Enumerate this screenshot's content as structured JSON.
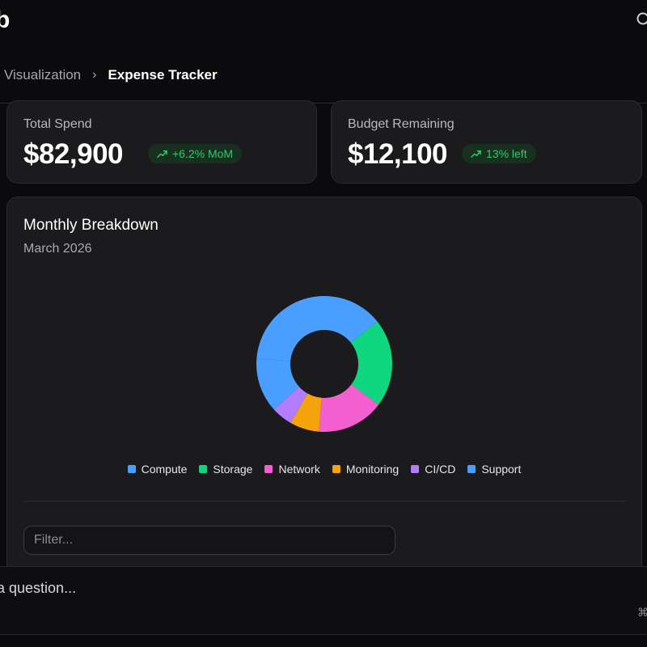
{
  "header": {
    "logo_text": "b",
    "search_icon": "search-icon"
  },
  "breadcrumb": {
    "parent": "Visualization",
    "separator": "›",
    "current": "Expense Tracker"
  },
  "stats": {
    "total_spend": {
      "label": "Total Spend",
      "value": "$82,900",
      "badge": "+6.2% MoM",
      "badge_icon": "trending-up-icon"
    },
    "budget_remaining": {
      "label": "Budget Remaining",
      "value": "$12,100",
      "badge": "13% left",
      "badge_icon": "trending-up-icon"
    }
  },
  "breakdown": {
    "title": "Monthly Breakdown",
    "subtitle": "March 2026",
    "filter_placeholder": "Filter..."
  },
  "chart_data": {
    "type": "pie",
    "style": "donut",
    "categories": [
      "Compute",
      "Storage",
      "Network",
      "Monitoring",
      "CI/CD",
      "Support"
    ],
    "values": [
      38,
      21,
      16,
      7,
      5,
      13
    ],
    "colors": [
      "#4a9eff",
      "#10d67f",
      "#f45fd0",
      "#f5a30a",
      "#b47cff",
      "#4a9eff"
    ],
    "legend_position": "bottom"
  },
  "ask_bar": {
    "placeholder": "a question...",
    "shortcut": "⌘"
  },
  "colors": {
    "background": "#0b0b0d",
    "card": "#1b1b1d",
    "positive": "#34c76a"
  }
}
